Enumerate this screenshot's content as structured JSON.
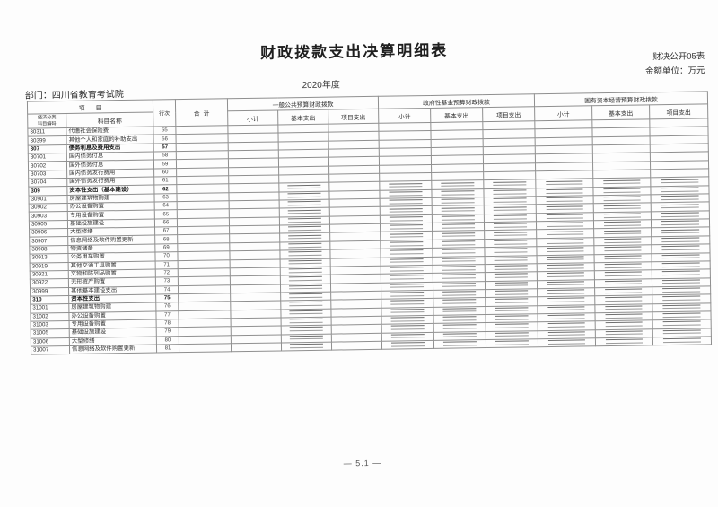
{
  "page": {
    "title": "财政拨款支出决算明细表",
    "form_no": "财决公开05表",
    "unit_note": "金额单位：万元",
    "year": "2020年度",
    "department": "部门：四川省教育考试院",
    "footer": "— 5.1 —"
  },
  "table": {
    "header": {
      "project": "项目",
      "code_line1": "经济分类",
      "code_line2": "科目编码",
      "name": "科目名称",
      "line_no": "行次",
      "total": "合计",
      "groups": [
        {
          "label": "一般公共预算财政拨款"
        },
        {
          "label": "政府性基金预算财政拨款"
        },
        {
          "label": "国有资本经营预算财政拨款"
        }
      ],
      "sub_columns": [
        "小计",
        "基本支出",
        "项目支出"
      ]
    },
    "dash_cell_indexes": [
      2,
      4,
      5,
      6,
      7,
      8,
      9
    ],
    "rows": [
      {
        "code": "30311",
        "name": "代缴社会保险费",
        "line": "55",
        "bold": false,
        "dashed": false
      },
      {
        "code": "30399",
        "name": "其他个人和家庭的补助支出",
        "line": "56",
        "bold": false,
        "dashed": false
      },
      {
        "code": "307",
        "name": "债务利息及费用支出",
        "line": "57",
        "bold": true,
        "dashed": false
      },
      {
        "code": "30701",
        "name": "国内债务付息",
        "line": "58",
        "bold": false,
        "dashed": false
      },
      {
        "code": "30702",
        "name": "国外债务付息",
        "line": "59",
        "bold": false,
        "dashed": false
      },
      {
        "code": "30703",
        "name": "国内债务发行费用",
        "line": "60",
        "bold": false,
        "dashed": false
      },
      {
        "code": "30704",
        "name": "国外债务发行费用",
        "line": "61",
        "bold": false,
        "dashed": false
      },
      {
        "code": "309",
        "name": "资本性支出（基本建设）",
        "line": "62",
        "bold": true,
        "dashed": true
      },
      {
        "code": "30901",
        "name": "房屋建筑物购建",
        "line": "63",
        "bold": false,
        "dashed": true
      },
      {
        "code": "30902",
        "name": "办公设备购置",
        "line": "64",
        "bold": false,
        "dashed": true
      },
      {
        "code": "30903",
        "name": "专用设备购置",
        "line": "65",
        "bold": false,
        "dashed": true
      },
      {
        "code": "30905",
        "name": "基础设施建设",
        "line": "66",
        "bold": false,
        "dashed": true
      },
      {
        "code": "30906",
        "name": "大型修缮",
        "line": "67",
        "bold": false,
        "dashed": true
      },
      {
        "code": "30907",
        "name": "信息网络及软件购置更新",
        "line": "68",
        "bold": false,
        "dashed": true
      },
      {
        "code": "30908",
        "name": "物资储备",
        "line": "69",
        "bold": false,
        "dashed": true
      },
      {
        "code": "30913",
        "name": "公务用车购置",
        "line": "70",
        "bold": false,
        "dashed": true
      },
      {
        "code": "30919",
        "name": "其他交通工具购置",
        "line": "71",
        "bold": false,
        "dashed": true
      },
      {
        "code": "30921",
        "name": "文物和陈列品购置",
        "line": "72",
        "bold": false,
        "dashed": true
      },
      {
        "code": "30922",
        "name": "无形资产购置",
        "line": "73",
        "bold": false,
        "dashed": true
      },
      {
        "code": "30999",
        "name": "其他基本建设支出",
        "line": "74",
        "bold": false,
        "dashed": true
      },
      {
        "code": "310",
        "name": "资本性支出",
        "line": "75",
        "bold": true,
        "dashed": true
      },
      {
        "code": "31001",
        "name": "房屋建筑物购建",
        "line": "76",
        "bold": false,
        "dashed": true
      },
      {
        "code": "31002",
        "name": "办公设备购置",
        "line": "77",
        "bold": false,
        "dashed": true
      },
      {
        "code": "31003",
        "name": "专用设备购置",
        "line": "78",
        "bold": false,
        "dashed": true
      },
      {
        "code": "31005",
        "name": "基础设施建设",
        "line": "79",
        "bold": false,
        "dashed": true
      },
      {
        "code": "31006",
        "name": "大型修缮",
        "line": "80",
        "bold": false,
        "dashed": true
      },
      {
        "code": "31007",
        "name": "信息网络及软件购置更新",
        "line": "81",
        "bold": false,
        "dashed": true
      }
    ]
  }
}
